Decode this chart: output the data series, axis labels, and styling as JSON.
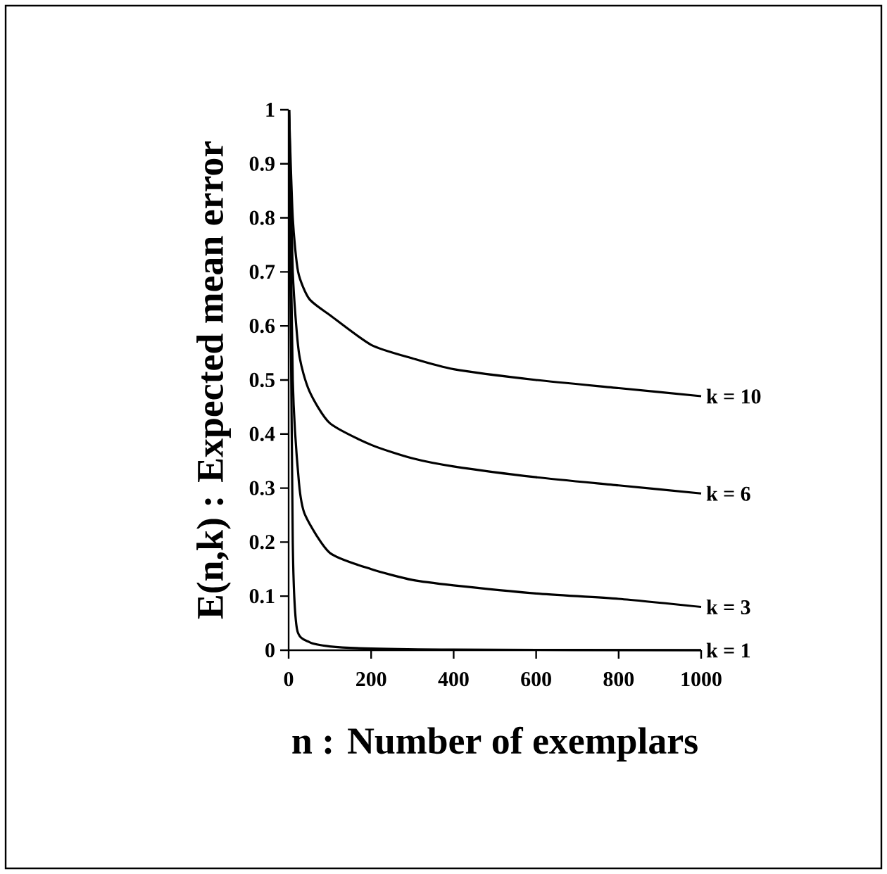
{
  "chart_data": {
    "type": "line",
    "xlabel": "n : Number of exemplars",
    "ylabel": "E(n,k) : Expected mean error",
    "xlim": [
      0,
      1000
    ],
    "ylim": [
      0,
      1
    ],
    "xticks": [
      0,
      200,
      400,
      600,
      800,
      1000
    ],
    "yticks": [
      0,
      0.1,
      0.2,
      0.3,
      0.4,
      0.5,
      0.6,
      0.7,
      0.8,
      0.9,
      1
    ],
    "grid": false,
    "legend": false,
    "marker": "none",
    "line_style": "solid",
    "series": [
      {
        "name": "k = 10",
        "color": "#000000",
        "x": [
          1,
          10,
          23,
          50,
          100,
          200,
          300,
          400,
          600,
          800,
          1000
        ],
        "values": [
          1,
          0.8,
          0.7,
          0.65,
          0.62,
          0.565,
          0.54,
          0.52,
          0.5,
          0.485,
          0.47
        ]
      },
      {
        "name": "k = 6",
        "color": "#000000",
        "x": [
          1,
          10,
          25,
          50,
          100,
          200,
          300,
          400,
          600,
          800,
          1000
        ],
        "values": [
          1,
          0.7,
          0.55,
          0.48,
          0.42,
          0.38,
          0.355,
          0.34,
          0.32,
          0.305,
          0.29
        ]
      },
      {
        "name": "k = 3",
        "color": "#000000",
        "x": [
          1,
          10,
          25,
          40,
          100,
          200,
          300,
          400,
          600,
          800,
          1000
        ],
        "values": [
          1,
          0.5,
          0.31,
          0.25,
          0.18,
          0.15,
          0.13,
          0.12,
          0.105,
          0.095,
          0.08
        ]
      },
      {
        "name": "k = 1",
        "color": "#000000",
        "x": [
          1,
          10,
          20,
          50,
          100,
          200,
          400,
          1000
        ],
        "values": [
          1,
          0.2,
          0.04,
          0.015,
          0.007,
          0.003,
          0.001,
          0
        ]
      }
    ]
  }
}
